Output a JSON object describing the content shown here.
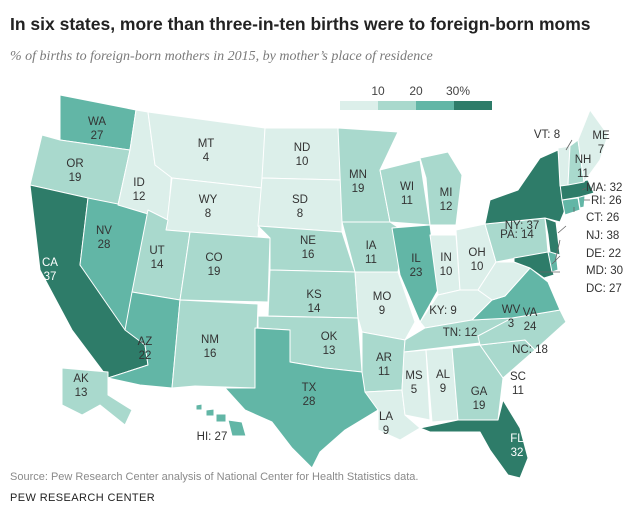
{
  "title": "In six states, more than three-in-ten births were to foreign-born moms",
  "subtitle": "% of births to foreign-born mothers in 2015, by mother’s place of residence",
  "legend": {
    "ticks": [
      "10",
      "20",
      "30%"
    ],
    "colors": [
      "#dcefea",
      "#a9d9cd",
      "#62b6a6",
      "#2e7c69"
    ]
  },
  "states": {
    "WA": "WA\n27",
    "OR": "OR\n19",
    "CA": "CA\n37",
    "NV": "NV\n28",
    "ID": "ID\n12",
    "MT": "MT\n4",
    "WY": "WY\n8",
    "UT": "UT\n14",
    "AZ": "AZ\n22",
    "CO": "CO\n19",
    "NM": "NM\n16",
    "ND": "ND\n10",
    "SD": "SD\n8",
    "NE": "NE\n16",
    "KS": "KS\n14",
    "OK": "OK\n13",
    "TX": "TX\n28",
    "MN": "MN\n19",
    "IA": "IA\n11",
    "MO": "MO\n9",
    "AR": "AR\n11",
    "LA": "LA\n9",
    "WI": "WI\n11",
    "IL": "IL\n23",
    "MI": "MI\n12",
    "IN": "IN\n10",
    "OH": "OH\n10",
    "KY": "KY: 9",
    "TN": "TN: 12",
    "MS": "MS\n5",
    "AL": "AL\n9",
    "GA": "GA\n19",
    "FL": "FL\n32",
    "SC": "SC\n11",
    "NC": "NC: 18",
    "VA": "VA\n24",
    "WV": "WV\n3",
    "PA": "PA: 14",
    "NY": "NY: 37",
    "VT": "VT: 8",
    "NH": "NH\n11",
    "ME": "ME\n7",
    "MA": "MA: 32",
    "RI": "RI: 26",
    "CT": "CT: 26",
    "NJ": "NJ: 38",
    "DE": "DE: 22",
    "MD": "MD: 30",
    "DC": "DC: 27",
    "AK": "AK\n13",
    "HI": "HI: 27"
  },
  "source": "Source: Pew Research Center analysis of National Center for Health Statistics data.",
  "brand": "PEW RESEARCH CENTER"
}
